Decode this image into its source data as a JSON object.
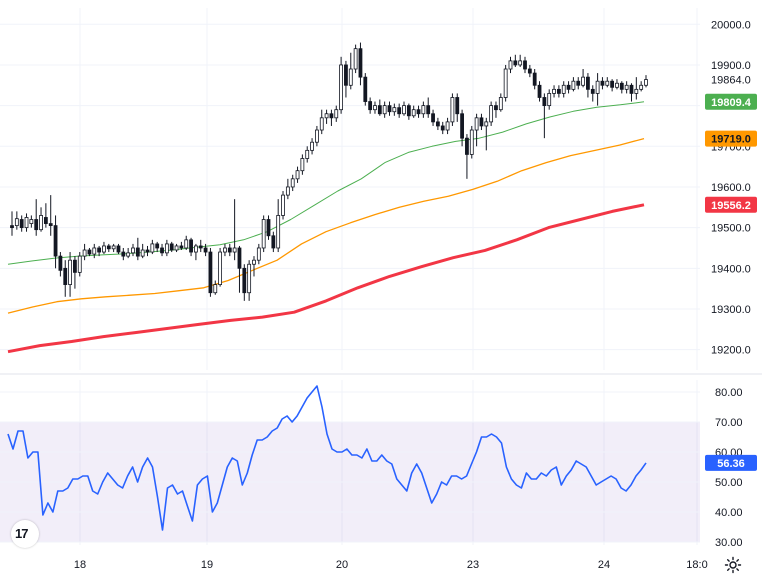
{
  "chart_data": [
    {
      "type": "candlestick",
      "title": "",
      "yaxis": {
        "ticks": [
          "20000.0",
          "19900.0",
          "19864.0",
          "19800.0",
          "19700.0",
          "19600.0",
          "19500.0",
          "19400.0",
          "19300.0",
          "19200.0"
        ],
        "range": [
          19150,
          20040
        ]
      },
      "last_price": 19864.0,
      "series": [
        {
          "color": "#4caf50",
          "last_value": "19809.4",
          "y": [
            19410,
            19418,
            19425,
            19430,
            19433,
            19436,
            19440,
            19445,
            19452,
            19458,
            19470,
            19490,
            19520,
            19555,
            19590,
            19620,
            19660,
            19685,
            19700,
            19712,
            19720,
            19735,
            19755,
            19772,
            19786,
            19796,
            19802,
            19809.4
          ]
        },
        {
          "color": "#ff9800",
          "last_value": "19719.0",
          "y": [
            19290,
            19305,
            19318,
            19325,
            19330,
            19334,
            19338,
            19345,
            19352,
            19370,
            19395,
            19420,
            19460,
            19490,
            19512,
            19532,
            19550,
            19565,
            19577,
            19594,
            19614,
            19640,
            19660,
            19677,
            19690,
            19703,
            19719.0
          ]
        },
        {
          "color": "#f23645",
          "last_value": "19556.2",
          "y": [
            19195,
            19210,
            19220,
            19232,
            19242,
            19252,
            19262,
            19272,
            19280,
            19292,
            19320,
            19352,
            19380,
            19404,
            19426,
            19444,
            19470,
            19500,
            19520,
            19540,
            19556.2
          ]
        }
      ],
      "candles": [
        [
          19505,
          19500,
          19540,
          19480
        ],
        [
          19505,
          19522,
          19540,
          19495
        ],
        [
          19520,
          19500,
          19530,
          19490
        ],
        [
          19500,
          19525,
          19535,
          19490
        ],
        [
          19510,
          19520,
          19530,
          19500
        ],
        [
          19520,
          19495,
          19570,
          19480
        ],
        [
          19495,
          19530,
          19550,
          19490
        ],
        [
          19525,
          19510,
          19560,
          19500
        ],
        [
          19510,
          19505,
          19580,
          19480
        ],
        [
          19505,
          19430,
          19530,
          19400
        ],
        [
          19430,
          19395,
          19440,
          19380
        ],
        [
          19400,
          19360,
          19420,
          19330
        ],
        [
          19360,
          19420,
          19440,
          19330
        ],
        [
          19420,
          19390,
          19430,
          19350
        ],
        [
          19390,
          19430,
          19440,
          19380
        ],
        [
          19430,
          19445,
          19460,
          19420
        ],
        [
          19445,
          19435,
          19450,
          19430
        ],
        [
          19435,
          19450,
          19460,
          19425
        ],
        [
          19450,
          19440,
          19455,
          19430
        ],
        [
          19440,
          19455,
          19465,
          19435
        ],
        [
          19455,
          19448,
          19460,
          19440
        ],
        [
          19448,
          19455,
          19460,
          19440
        ],
        [
          19455,
          19440,
          19460,
          19435
        ],
        [
          19440,
          19430,
          19450,
          19420
        ],
        [
          19430,
          19438,
          19450,
          19425
        ],
        [
          19438,
          19450,
          19460,
          19430
        ],
        [
          19450,
          19430,
          19475,
          19420
        ],
        [
          19430,
          19445,
          19460,
          19425
        ],
        [
          19445,
          19440,
          19455,
          19430
        ],
        [
          19440,
          19460,
          19470,
          19435
        ],
        [
          19460,
          19450,
          19465,
          19440
        ],
        [
          19450,
          19438,
          19460,
          19430
        ],
        [
          19438,
          19460,
          19470,
          19430
        ],
        [
          19460,
          19445,
          19465,
          19440
        ],
        [
          19445,
          19455,
          19460,
          19440
        ],
        [
          19455,
          19450,
          19465,
          19445
        ],
        [
          19450,
          19470,
          19480,
          19445
        ],
        [
          19470,
          19440,
          19475,
          19430
        ],
        [
          19440,
          19455,
          19460,
          19420
        ],
        [
          19455,
          19450,
          19470,
          19440
        ],
        [
          19450,
          19440,
          19460,
          19430
        ],
        [
          19440,
          19340,
          19450,
          19330
        ],
        [
          19340,
          19360,
          19370,
          19335
        ],
        [
          19360,
          19440,
          19450,
          19355
        ],
        [
          19440,
          19450,
          19460,
          19430
        ],
        [
          19450,
          19440,
          19460,
          19430
        ],
        [
          19440,
          19450,
          19570,
          19420
        ],
        [
          19450,
          19400,
          19455,
          19340
        ],
        [
          19400,
          19340,
          19410,
          19320
        ],
        [
          19340,
          19410,
          19420,
          19320
        ],
        [
          19410,
          19420,
          19430,
          19380
        ],
        [
          19420,
          19450,
          19460,
          19410
        ],
        [
          19450,
          19520,
          19530,
          19440
        ],
        [
          19520,
          19480,
          19530,
          19470
        ],
        [
          19480,
          19450,
          19490,
          19440
        ],
        [
          19450,
          19530,
          19570,
          19440
        ],
        [
          19530,
          19580,
          19590,
          19520
        ],
        [
          19580,
          19600,
          19620,
          19570
        ],
        [
          19600,
          19620,
          19630,
          19590
        ],
        [
          19620,
          19640,
          19650,
          19610
        ],
        [
          19640,
          19670,
          19680,
          19630
        ],
        [
          19670,
          19690,
          19700,
          19660
        ],
        [
          19690,
          19710,
          19720,
          19680
        ],
        [
          19710,
          19740,
          19750,
          19700
        ],
        [
          19740,
          19770,
          19790,
          19730
        ],
        [
          19770,
          19780,
          19790,
          19755
        ],
        [
          19780,
          19770,
          19790,
          19750
        ],
        [
          19770,
          19790,
          19800,
          19760
        ],
        [
          19790,
          19900,
          19920,
          19780
        ],
        [
          19900,
          19850,
          19910,
          19820
        ],
        [
          19850,
          19890,
          19930,
          19840
        ],
        [
          19890,
          19940,
          19950,
          19880
        ],
        [
          19940,
          19870,
          19955,
          19850
        ],
        [
          19870,
          19810,
          19880,
          19800
        ],
        [
          19810,
          19790,
          19820,
          19780
        ],
        [
          19790,
          19800,
          19810,
          19780
        ],
        [
          19800,
          19780,
          19815,
          19775
        ],
        [
          19780,
          19800,
          19810,
          19770
        ],
        [
          19800,
          19785,
          19810,
          19775
        ],
        [
          19785,
          19795,
          19805,
          19775
        ],
        [
          19795,
          19780,
          19805,
          19770
        ],
        [
          19780,
          19800,
          19810,
          19775
        ],
        [
          19800,
          19775,
          19805,
          19765
        ],
        [
          19775,
          19790,
          19800,
          19770
        ],
        [
          19790,
          19780,
          19800,
          19770
        ],
        [
          19780,
          19800,
          19810,
          19770
        ],
        [
          19800,
          19780,
          19820,
          19770
        ],
        [
          19780,
          19760,
          19790,
          19750
        ],
        [
          19760,
          19750,
          19770,
          19740
        ],
        [
          19750,
          19740,
          19760,
          19730
        ],
        [
          19740,
          19760,
          19770,
          19730
        ],
        [
          19760,
          19820,
          19830,
          19750
        ],
        [
          19820,
          19780,
          19830,
          19760
        ],
        [
          19780,
          19720,
          19790,
          19700
        ],
        [
          19720,
          19680,
          19730,
          19620
        ],
        [
          19680,
          19740,
          19750,
          19670
        ],
        [
          19740,
          19770,
          19780,
          19700
        ],
        [
          19770,
          19750,
          19780,
          19740
        ],
        [
          19750,
          19760,
          19770,
          19690
        ],
        [
          19760,
          19800,
          19810,
          19750
        ],
        [
          19800,
          19790,
          19810,
          19770
        ],
        [
          19790,
          19820,
          19830,
          19785
        ],
        [
          19820,
          19890,
          19900,
          19810
        ],
        [
          19890,
          19910,
          19920,
          19880
        ],
        [
          19910,
          19900,
          19925,
          19895
        ],
        [
          19900,
          19910,
          19925,
          19895
        ],
        [
          19910,
          19890,
          19920,
          19880
        ],
        [
          19890,
          19880,
          19900,
          19870
        ],
        [
          19880,
          19850,
          19890,
          19840
        ],
        [
          19850,
          19820,
          19860,
          19810
        ],
        [
          19820,
          19800,
          19830,
          19720
        ],
        [
          19800,
          19830,
          19840,
          19790
        ],
        [
          19830,
          19840,
          19850,
          19820
        ],
        [
          19840,
          19830,
          19850,
          19820
        ],
        [
          19830,
          19850,
          19860,
          19820
        ],
        [
          19850,
          19840,
          19860,
          19830
        ],
        [
          19840,
          19860,
          19870,
          19835
        ],
        [
          19860,
          19850,
          19870,
          19840
        ],
        [
          19850,
          19870,
          19890,
          19845
        ],
        [
          19870,
          19840,
          19880,
          19820
        ],
        [
          19840,
          19830,
          19850,
          19810
        ],
        [
          19830,
          19860,
          19880,
          19800
        ],
        [
          19860,
          19850,
          19870,
          19840
        ],
        [
          19850,
          19860,
          19870,
          19845
        ],
        [
          19860,
          19845,
          19865,
          19835
        ],
        [
          19845,
          19855,
          19865,
          19840
        ],
        [
          19855,
          19840,
          19860,
          19830
        ],
        [
          19840,
          19850,
          19860,
          19830
        ],
        [
          19850,
          19830,
          19855,
          19810
        ],
        [
          19830,
          19840,
          19870,
          19815
        ],
        [
          19840,
          19850,
          19860,
          19835
        ],
        [
          19850,
          19864,
          19875,
          19845
        ]
      ]
    },
    {
      "type": "line",
      "title": "",
      "yaxis": {
        "ticks": [
          "80.00",
          "70.00",
          "60.00",
          "50.00",
          "40.00",
          "30.00"
        ],
        "range": [
          29,
          84
        ]
      },
      "band": [
        30,
        70
      ],
      "last_value": "56.36",
      "series": [
        {
          "color": "#2962ff",
          "values": [
            66,
            61,
            67,
            67,
            58,
            60,
            60,
            39,
            43,
            40,
            47,
            47,
            48,
            51,
            51,
            52,
            52,
            47,
            46,
            50,
            53,
            51,
            49,
            48,
            52,
            55,
            50,
            55,
            58,
            55,
            45,
            34,
            48,
            49,
            46,
            47,
            42,
            37,
            49,
            51,
            52,
            40,
            43,
            49,
            55,
            58,
            57,
            49,
            53,
            59,
            64,
            64,
            65,
            67,
            68,
            71,
            72,
            70,
            72,
            75,
            78,
            80,
            82,
            75,
            66,
            61,
            60,
            60,
            61,
            59,
            59,
            58,
            61,
            57,
            57,
            59,
            57,
            56,
            51,
            49,
            47,
            53,
            56,
            53,
            48,
            43,
            46,
            50,
            49,
            52,
            52,
            51,
            52,
            56,
            60,
            65,
            65,
            66,
            65,
            63,
            55,
            51,
            49,
            48,
            53,
            51,
            51,
            53,
            52,
            54,
            55,
            49,
            52,
            54,
            57,
            56,
            55,
            52,
            49,
            50,
            51,
            52,
            51,
            48,
            47,
            49,
            52,
            54,
            56.36
          ]
        }
      ]
    }
  ],
  "xaxis": {
    "ticks": [
      "18",
      "19",
      "20",
      "23",
      "24",
      "18:0"
    ]
  },
  "logo_text": "17"
}
